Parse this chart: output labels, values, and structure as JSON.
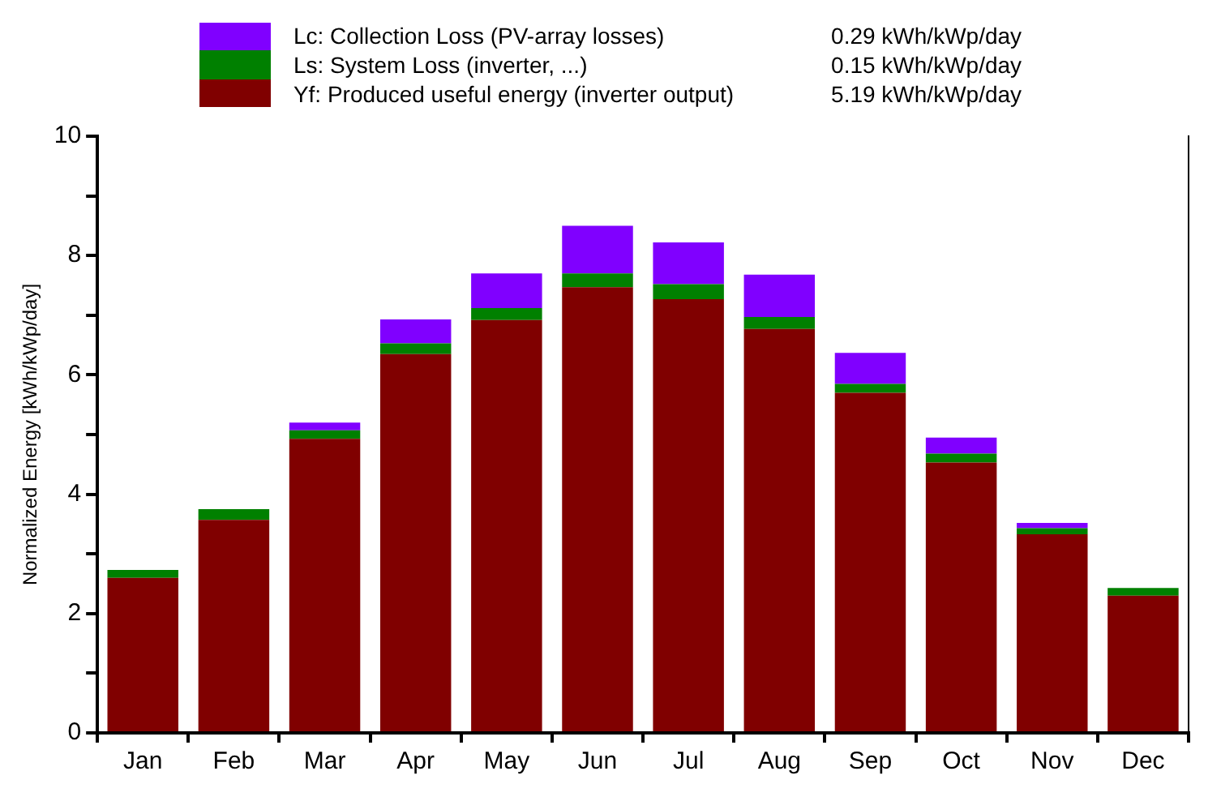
{
  "chart_data": {
    "type": "bar",
    "stacked": true,
    "ylabel": "Normalized Energy [kWh/kWp/day]",
    "categories": [
      "Jan",
      "Feb",
      "Mar",
      "Apr",
      "May",
      "Jun",
      "Jul",
      "Aug",
      "Sep",
      "Oct",
      "Nov",
      "Dec"
    ],
    "series": [
      {
        "name": "Yf: Produced useful energy (inverter output)",
        "color": "#800000",
        "values": [
          2.6,
          3.57,
          4.93,
          6.35,
          6.92,
          7.47,
          7.27,
          6.77,
          5.7,
          4.53,
          3.33,
          2.3
        ]
      },
      {
        "name": "Ls: System Loss (inverter, ...)",
        "color": "#008000",
        "values": [
          0.13,
          0.18,
          0.14,
          0.18,
          0.2,
          0.23,
          0.25,
          0.2,
          0.15,
          0.15,
          0.1,
          0.13
        ]
      },
      {
        "name": "Lc: Collection Loss (PV-array losses)",
        "color": "#8000ff",
        "values": [
          0,
          0,
          0.13,
          0.4,
          0.58,
          0.8,
          0.7,
          0.71,
          0.52,
          0.27,
          0.09,
          0
        ]
      }
    ],
    "annotations": [
      "5.19 kWh/kWp/day",
      "0.15 kWh/kWp/day",
      "0.29 kWh/kWp/day"
    ],
    "ylim": [
      0,
      10
    ],
    "yticks": [
      0,
      {
        "value": 1,
        "label": null
      },
      2,
      {
        "value": 3,
        "label": null
      },
      4,
      {
        "value": 5,
        "label": null
      },
      6,
      {
        "value": 7,
        "label": null
      },
      8,
      {
        "value": 9,
        "label": null
      },
      10
    ],
    "legend": "top"
  }
}
